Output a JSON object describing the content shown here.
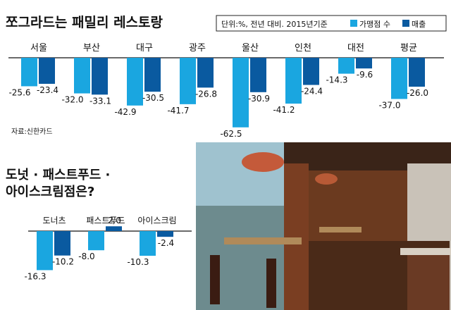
{
  "source": "자료:신한카드",
  "colors": {
    "stores": "#1aa6e0",
    "sales": "#0a5aa0",
    "photo_wall": "#6b3a1f",
    "photo_floor": "#4a2a18"
  },
  "chart_data": [
    {
      "type": "bar",
      "title": "쪼그라드는 패밀리 레스토랑",
      "legend_note": "단위:%, 전년 대비. 2015년기준",
      "legend_placement": "top-right",
      "categories": [
        "서울",
        "부산",
        "대구",
        "광주",
        "울산",
        "인천",
        "대전",
        "평균"
      ],
      "series": [
        {
          "name": "가맹점 수",
          "values": [
            -25.6,
            -32.0,
            -42.9,
            -41.7,
            -62.5,
            -41.2,
            -14.3,
            -37.0
          ]
        },
        {
          "name": "매출",
          "values": [
            -23.4,
            -33.1,
            -30.5,
            -26.8,
            -30.9,
            -24.4,
            -9.6,
            -26.0
          ]
        }
      ],
      "ylim": [
        -70,
        0
      ]
    },
    {
      "type": "bar",
      "title": [
        "도넛 · 패스트푸드 ·",
        "아이스크림점은?"
      ],
      "categories": [
        "도너츠",
        "패스트푸드",
        "아이스크림"
      ],
      "series": [
        {
          "name": "가맹점 수",
          "values": [
            -16.3,
            -8.0,
            -10.3
          ]
        },
        {
          "name": "매출",
          "values": [
            -10.2,
            2.0,
            -2.4
          ]
        }
      ],
      "ylim": [
        -20,
        5
      ]
    }
  ],
  "photo": {
    "icon": "restaurant-interior-photo"
  }
}
